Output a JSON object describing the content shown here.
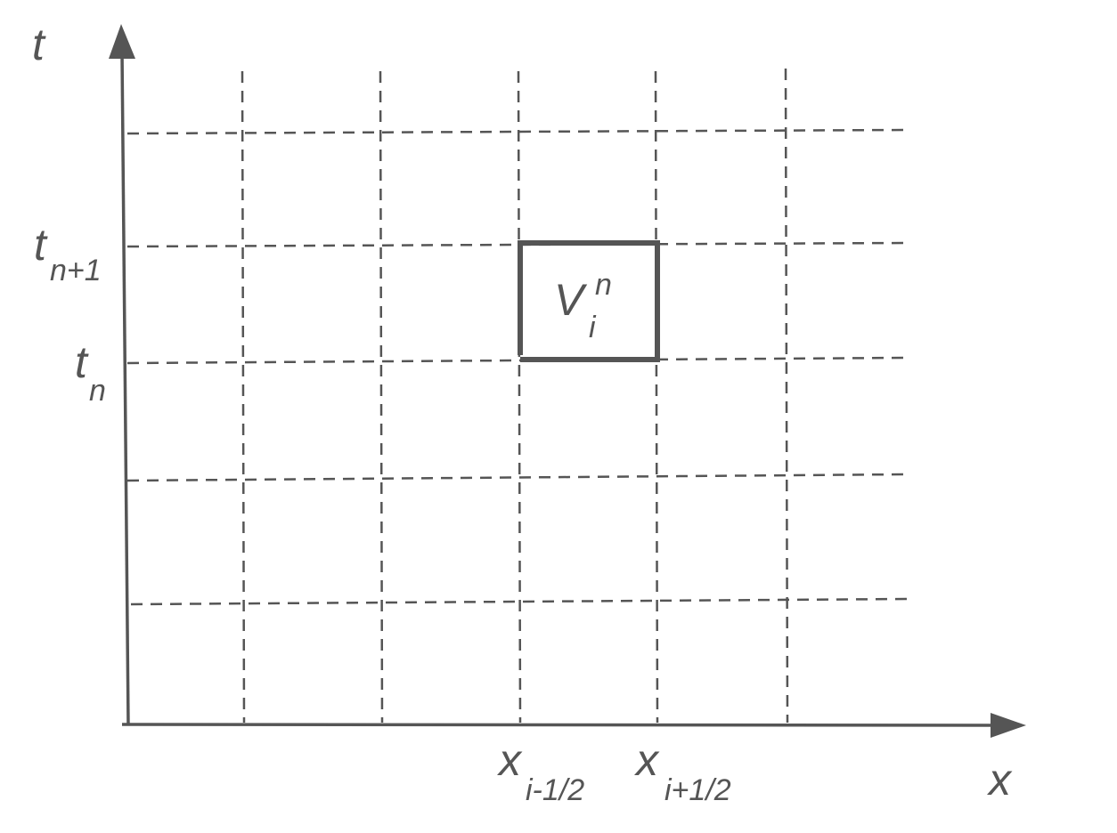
{
  "axes": {
    "t_label": "t",
    "x_label": "x"
  },
  "t_ticks": [
    {
      "main": "t",
      "sub": "n+1"
    },
    {
      "main": "t",
      "sub": "n"
    }
  ],
  "x_ticks": [
    {
      "main": "x",
      "sub": "i-1/2"
    },
    {
      "main": "x",
      "sub": "i+1/2"
    }
  ],
  "cell": {
    "main": "V",
    "sup": "n",
    "sub": "i"
  },
  "colors": {
    "ink": "#555555",
    "background": "#ffffff"
  }
}
